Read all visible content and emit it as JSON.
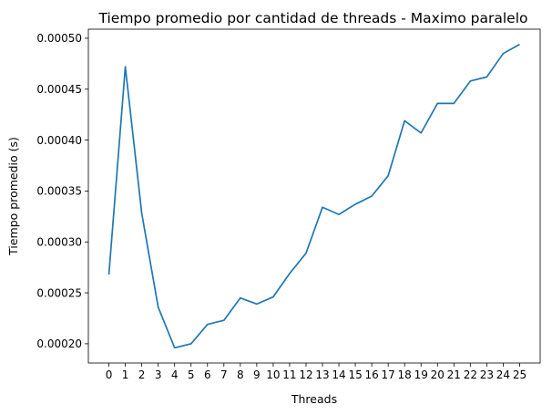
{
  "chart_data": {
    "type": "line",
    "title": "Tiempo promedio por cantidad de threads - Maximo paralelo",
    "xlabel": "Threads",
    "ylabel": "Tiempo promedio (s)",
    "x": [
      0,
      1,
      2,
      3,
      4,
      5,
      6,
      7,
      8,
      9,
      10,
      11,
      12,
      13,
      14,
      15,
      16,
      17,
      18,
      19,
      20,
      21,
      22,
      23,
      24,
      25
    ],
    "series": [
      {
        "color": "#1f77b4",
        "values": [
          0.000268,
          0.000472,
          0.000328,
          0.000236,
          0.000196,
          0.0002,
          0.000219,
          0.000223,
          0.000245,
          0.000239,
          0.000246,
          0.000269,
          0.000289,
          0.000334,
          0.000327,
          0.000337,
          0.000345,
          0.000365,
          0.000419,
          0.000407,
          0.000436,
          0.000436,
          0.000458,
          0.000462,
          0.000485,
          0.000494
        ]
      }
    ],
    "xticks": [
      "0",
      "1",
      "2",
      "3",
      "4",
      "5",
      "6",
      "7",
      "8",
      "9",
      "10",
      "11",
      "12",
      "13",
      "14",
      "15",
      "16",
      "17",
      "18",
      "19",
      "20",
      "21",
      "22",
      "23",
      "24",
      "25"
    ],
    "yticks": [
      0.0002,
      0.00025,
      0.0003,
      0.00035,
      0.0004,
      0.00045,
      0.0005
    ],
    "ytick_labels": [
      "0.00020",
      "0.00025",
      "0.00030",
      "0.00035",
      "0.00040",
      "0.00045",
      "0.00050"
    ],
    "xlim": [
      -1.25,
      26.25
    ],
    "ylim": [
      0.0001811,
      0.0005089
    ],
    "grid": false,
    "legend": "none"
  }
}
